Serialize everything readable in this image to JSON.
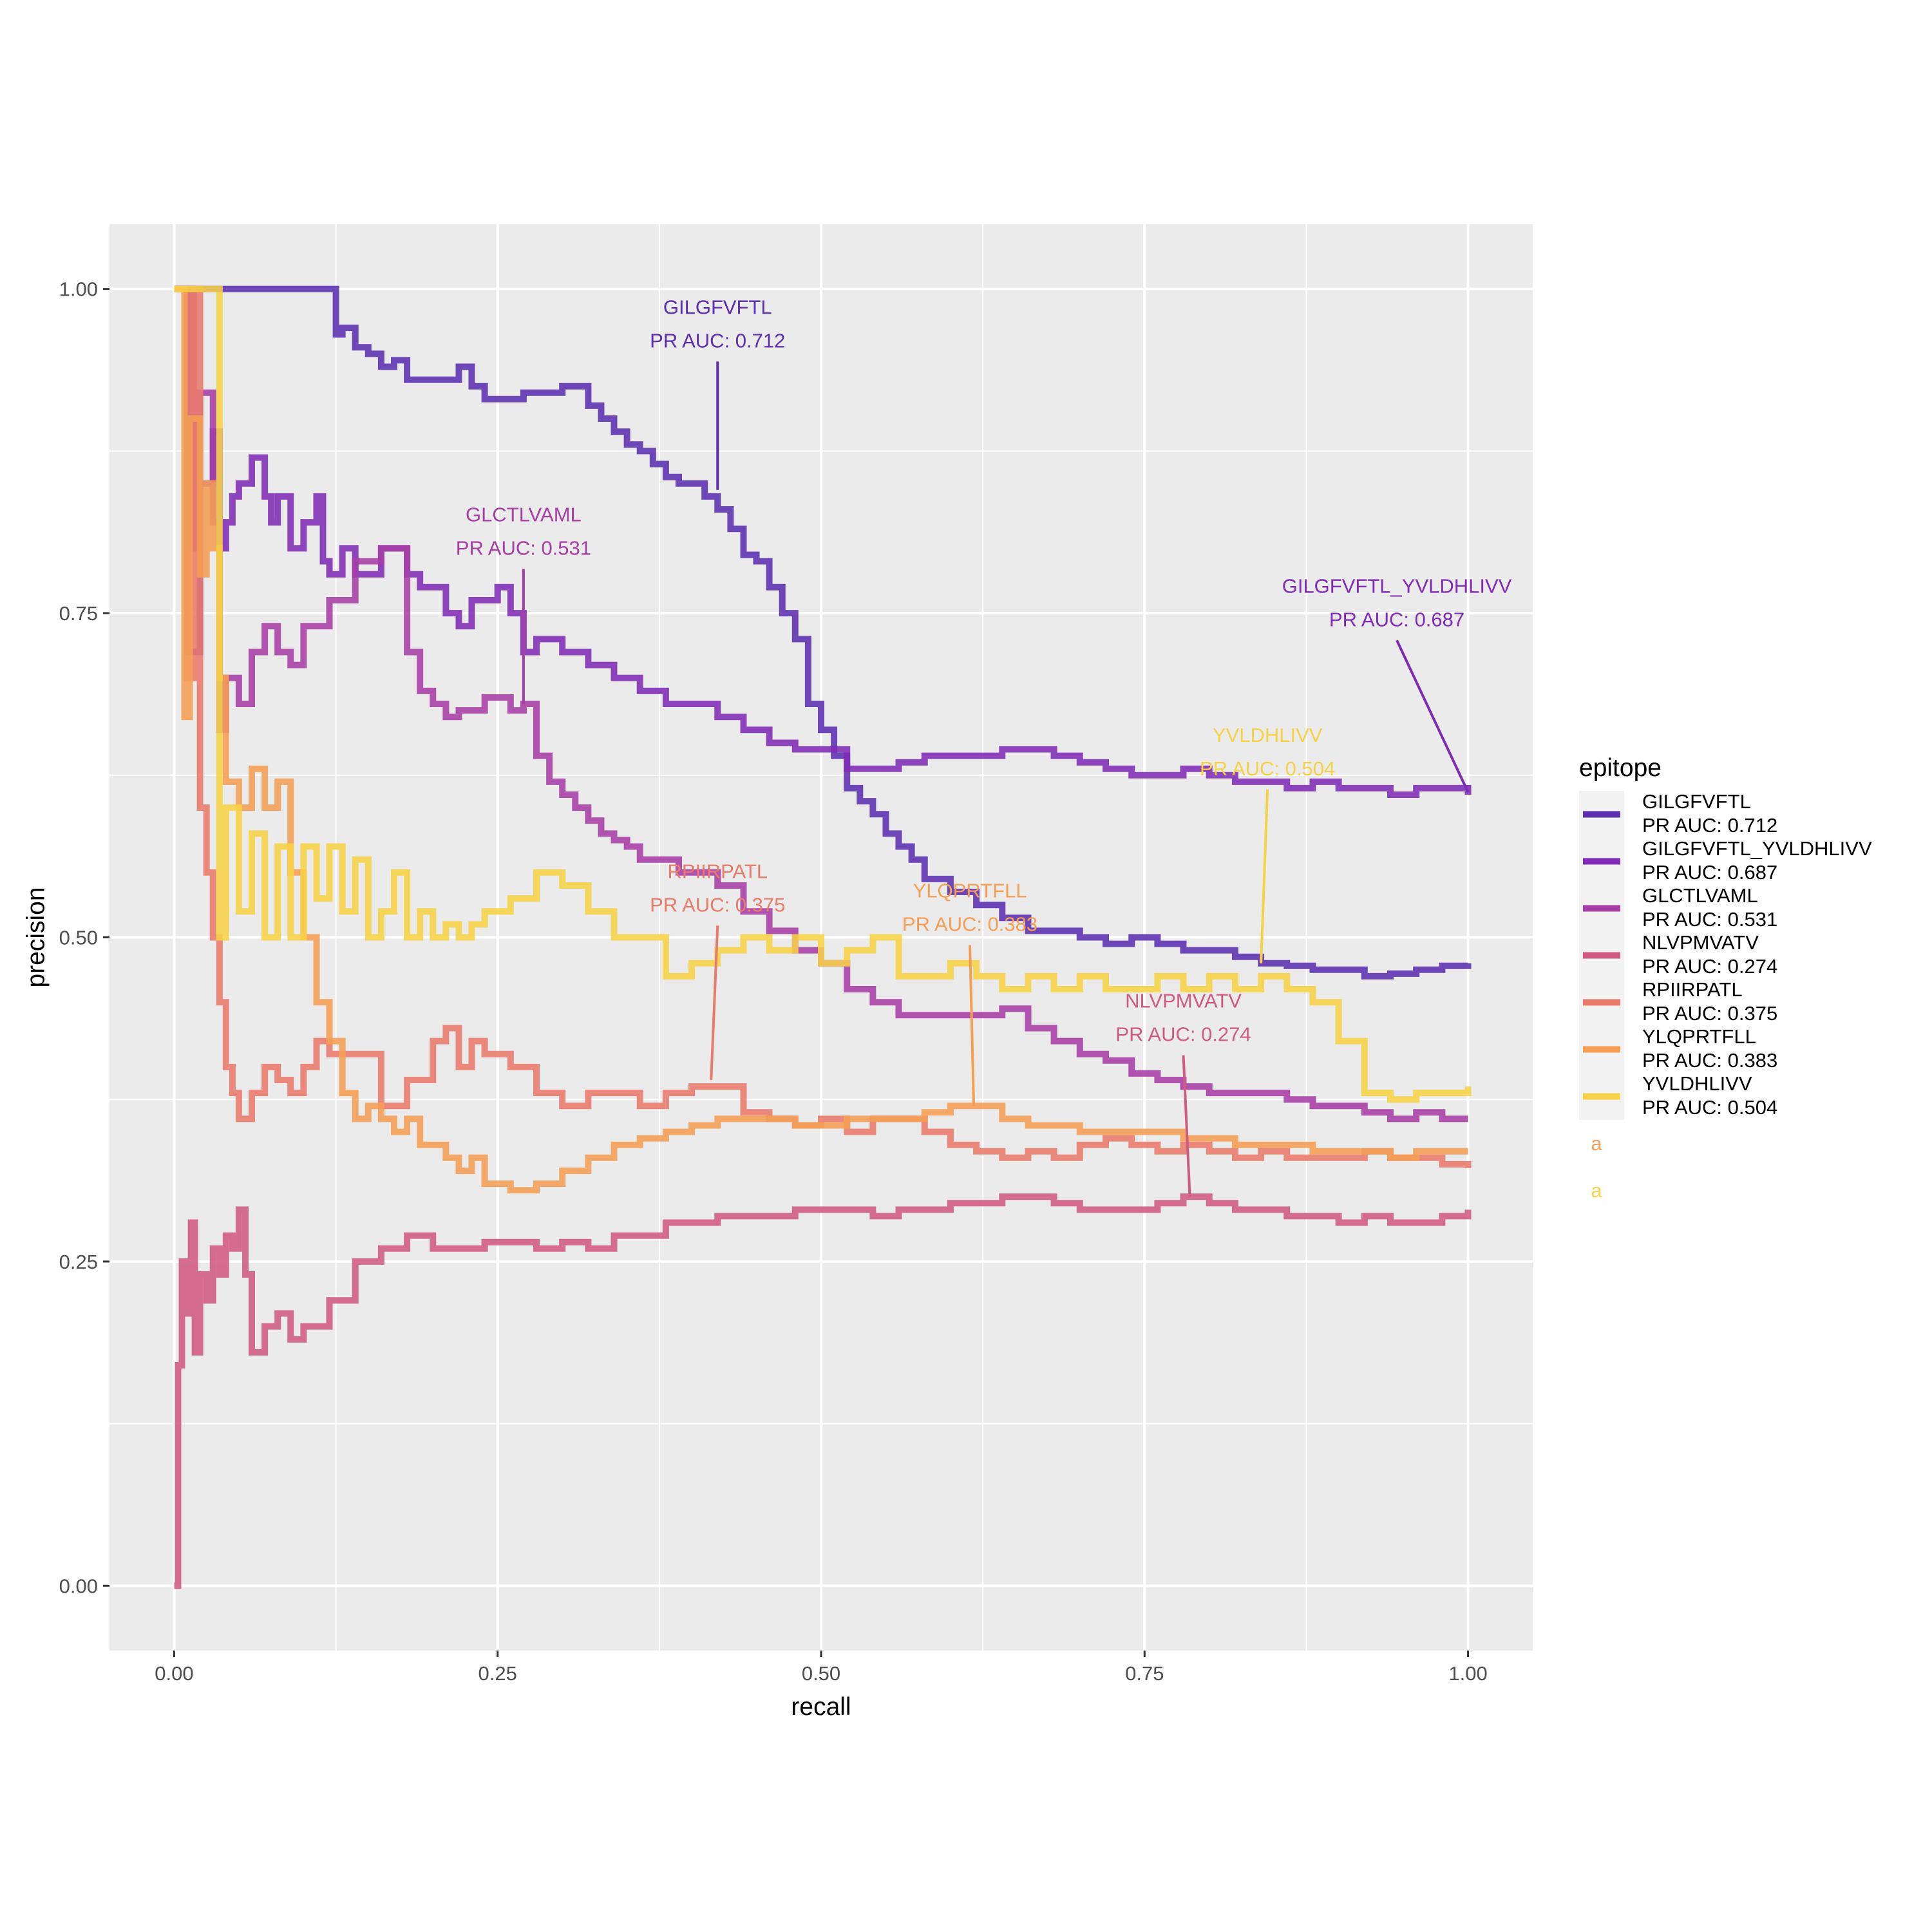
{
  "chart_data": {
    "type": "line",
    "xlabel": "recall",
    "ylabel": "precision",
    "xlim": [
      -0.05,
      1.05
    ],
    "ylim": [
      -0.05,
      1.05
    ],
    "x_ticks": [
      "0.00",
      "0.25",
      "0.50",
      "0.75",
      "1.00"
    ],
    "y_ticks": [
      "0.00",
      "0.25",
      "0.50",
      "0.75",
      "1.00"
    ],
    "grid": true,
    "legend": {
      "title": "epitope",
      "placement": "right",
      "extra_keys": [
        "a",
        "a"
      ]
    },
    "series": [
      {
        "name": "GILGFVFTL\nPR AUC: 0.712",
        "color": "#5b2fb0",
        "label_lines": [
          "GILGFVFTL",
          "PR AUC: 0.712"
        ],
        "label_anchor": [
          0.42,
          0.95
        ],
        "label_target": [
          0.42,
          0.845
        ],
        "x": [
          0.0,
          0.04,
          0.08,
          0.12,
          0.125,
          0.13,
          0.14,
          0.15,
          0.16,
          0.17,
          0.18,
          0.2,
          0.22,
          0.23,
          0.24,
          0.25,
          0.27,
          0.3,
          0.32,
          0.33,
          0.34,
          0.35,
          0.36,
          0.37,
          0.38,
          0.39,
          0.4,
          0.41,
          0.42,
          0.43,
          0.44,
          0.45,
          0.46,
          0.47,
          0.48,
          0.49,
          0.5,
          0.51,
          0.52,
          0.53,
          0.54,
          0.55,
          0.56,
          0.57,
          0.58,
          0.6,
          0.62,
          0.64,
          0.66,
          0.68,
          0.7,
          0.72,
          0.74,
          0.76,
          0.78,
          0.8,
          0.82,
          0.84,
          0.86,
          0.88,
          0.9,
          0.92,
          0.94,
          0.96,
          0.98,
          1.0
        ],
        "y": [
          1.0,
          1.0,
          1.0,
          1.0,
          0.965,
          0.97,
          0.955,
          0.95,
          0.94,
          0.945,
          0.93,
          0.93,
          0.94,
          0.925,
          0.915,
          0.915,
          0.92,
          0.925,
          0.91,
          0.9,
          0.89,
          0.88,
          0.875,
          0.865,
          0.855,
          0.85,
          0.85,
          0.84,
          0.83,
          0.815,
          0.795,
          0.79,
          0.77,
          0.75,
          0.73,
          0.68,
          0.66,
          0.64,
          0.615,
          0.605,
          0.595,
          0.58,
          0.57,
          0.56,
          0.545,
          0.535,
          0.525,
          0.515,
          0.505,
          0.505,
          0.5,
          0.495,
          0.5,
          0.495,
          0.49,
          0.49,
          0.485,
          0.48,
          0.478,
          0.475,
          0.475,
          0.47,
          0.472,
          0.475,
          0.478,
          0.48
        ]
      },
      {
        "name": "GILGFVFTL_YVLDHLIVV\nPR AUC: 0.687",
        "color": "#7f2bb5",
        "label_lines": [
          "GILGFVFTL_YVLDHLIVV",
          "PR AUC: 0.687"
        ],
        "label_anchor": [
          0.945,
          0.735
        ],
        "label_target": [
          1.0,
          0.612
        ],
        "x": [
          0.0,
          0.01,
          0.02,
          0.03,
          0.035,
          0.04,
          0.045,
          0.05,
          0.06,
          0.07,
          0.075,
          0.08,
          0.09,
          0.1,
          0.11,
          0.115,
          0.12,
          0.13,
          0.14,
          0.15,
          0.16,
          0.17,
          0.18,
          0.19,
          0.2,
          0.21,
          0.22,
          0.23,
          0.24,
          0.25,
          0.26,
          0.27,
          0.28,
          0.3,
          0.32,
          0.34,
          0.36,
          0.38,
          0.4,
          0.42,
          0.44,
          0.46,
          0.48,
          0.5,
          0.52,
          0.54,
          0.56,
          0.58,
          0.6,
          0.62,
          0.64,
          0.66,
          0.68,
          0.7,
          0.72,
          0.74,
          0.76,
          0.78,
          0.8,
          0.82,
          0.84,
          0.86,
          0.88,
          0.9,
          0.92,
          0.94,
          0.96,
          0.98,
          1.0
        ],
        "y": [
          1.0,
          0.72,
          0.85,
          0.89,
          0.8,
          0.82,
          0.84,
          0.85,
          0.87,
          0.84,
          0.82,
          0.84,
          0.8,
          0.82,
          0.84,
          0.79,
          0.78,
          0.8,
          0.78,
          0.78,
          0.8,
          0.8,
          0.78,
          0.77,
          0.77,
          0.75,
          0.74,
          0.76,
          0.76,
          0.77,
          0.75,
          0.72,
          0.73,
          0.72,
          0.71,
          0.7,
          0.69,
          0.68,
          0.68,
          0.67,
          0.66,
          0.65,
          0.645,
          0.645,
          0.63,
          0.63,
          0.635,
          0.64,
          0.64,
          0.64,
          0.645,
          0.645,
          0.64,
          0.635,
          0.63,
          0.625,
          0.625,
          0.63,
          0.625,
          0.62,
          0.62,
          0.615,
          0.62,
          0.615,
          0.615,
          0.61,
          0.615,
          0.615,
          0.61
        ]
      },
      {
        "name": "GLCTLVAML\nPR AUC: 0.531",
        "color": "#a73ea6",
        "label_lines": [
          "GLCTLVAML",
          "PR AUC: 0.531"
        ],
        "label_anchor": [
          0.27,
          0.79
        ],
        "label_target": [
          0.27,
          0.68
        ],
        "x": [
          0.0,
          0.015,
          0.02,
          0.03,
          0.035,
          0.04,
          0.05,
          0.06,
          0.07,
          0.08,
          0.09,
          0.1,
          0.12,
          0.14,
          0.16,
          0.175,
          0.18,
          0.19,
          0.2,
          0.21,
          0.22,
          0.24,
          0.26,
          0.27,
          0.28,
          0.29,
          0.3,
          0.31,
          0.32,
          0.33,
          0.34,
          0.35,
          0.36,
          0.37,
          0.38,
          0.39,
          0.4,
          0.42,
          0.44,
          0.46,
          0.48,
          0.5,
          0.52,
          0.54,
          0.56,
          0.58,
          0.6,
          0.62,
          0.64,
          0.66,
          0.68,
          0.7,
          0.72,
          0.74,
          0.76,
          0.78,
          0.8,
          0.82,
          0.84,
          0.86,
          0.88,
          0.9,
          0.92,
          0.94,
          0.96,
          0.98,
          1.0
        ],
        "y": [
          1.0,
          0.8,
          0.92,
          0.82,
          0.66,
          0.7,
          0.68,
          0.72,
          0.74,
          0.72,
          0.71,
          0.74,
          0.76,
          0.79,
          0.8,
          0.8,
          0.72,
          0.69,
          0.68,
          0.67,
          0.675,
          0.685,
          0.675,
          0.68,
          0.64,
          0.62,
          0.61,
          0.6,
          0.59,
          0.58,
          0.575,
          0.57,
          0.56,
          0.56,
          0.56,
          0.55,
          0.55,
          0.54,
          0.52,
          0.505,
          0.49,
          0.48,
          0.46,
          0.45,
          0.44,
          0.44,
          0.44,
          0.44,
          0.445,
          0.43,
          0.42,
          0.41,
          0.405,
          0.395,
          0.39,
          0.385,
          0.38,
          0.38,
          0.38,
          0.375,
          0.37,
          0.37,
          0.365,
          0.36,
          0.365,
          0.36,
          0.36
        ]
      },
      {
        "name": "NLVPMVATV\nPR AUC: 0.274",
        "color": "#cf5a82",
        "label_lines": [
          "NLVPMVATV",
          "PR AUC: 0.274"
        ],
        "label_anchor": [
          0.78,
          0.415
        ],
        "label_target": [
          0.785,
          0.3
        ],
        "x": [
          0.0,
          0.003,
          0.006,
          0.01,
          0.013,
          0.016,
          0.02,
          0.025,
          0.03,
          0.035,
          0.04,
          0.045,
          0.05,
          0.055,
          0.06,
          0.07,
          0.08,
          0.09,
          0.1,
          0.12,
          0.14,
          0.16,
          0.18,
          0.2,
          0.22,
          0.24,
          0.26,
          0.28,
          0.3,
          0.32,
          0.34,
          0.36,
          0.38,
          0.4,
          0.42,
          0.44,
          0.46,
          0.48,
          0.5,
          0.52,
          0.54,
          0.56,
          0.58,
          0.6,
          0.62,
          0.64,
          0.66,
          0.68,
          0.7,
          0.72,
          0.74,
          0.76,
          0.78,
          0.8,
          0.82,
          0.84,
          0.86,
          0.88,
          0.9,
          0.92,
          0.94,
          0.96,
          0.98,
          1.0
        ],
        "y": [
          0.0,
          0.17,
          0.25,
          0.21,
          0.28,
          0.18,
          0.24,
          0.22,
          0.26,
          0.24,
          0.27,
          0.26,
          0.29,
          0.24,
          0.18,
          0.2,
          0.21,
          0.19,
          0.2,
          0.22,
          0.25,
          0.26,
          0.27,
          0.26,
          0.26,
          0.265,
          0.265,
          0.26,
          0.265,
          0.26,
          0.27,
          0.27,
          0.28,
          0.28,
          0.285,
          0.285,
          0.285,
          0.29,
          0.29,
          0.29,
          0.285,
          0.29,
          0.29,
          0.295,
          0.295,
          0.3,
          0.3,
          0.295,
          0.29,
          0.29,
          0.29,
          0.295,
          0.3,
          0.295,
          0.29,
          0.29,
          0.285,
          0.285,
          0.28,
          0.285,
          0.28,
          0.28,
          0.285,
          0.29
        ]
      },
      {
        "name": "RPIIRPATL\nPR AUC: 0.375",
        "color": "#e97b6b",
        "label_lines": [
          "RPIIRPATL",
          "PR AUC: 0.375"
        ],
        "label_anchor": [
          0.42,
          0.515
        ],
        "label_target": [
          0.415,
          0.39
        ],
        "x": [
          0.0,
          0.01,
          0.015,
          0.02,
          0.025,
          0.03,
          0.035,
          0.04,
          0.045,
          0.05,
          0.06,
          0.07,
          0.08,
          0.09,
          0.1,
          0.11,
          0.12,
          0.14,
          0.16,
          0.18,
          0.2,
          0.21,
          0.22,
          0.23,
          0.24,
          0.26,
          0.28,
          0.3,
          0.32,
          0.34,
          0.36,
          0.38,
          0.4,
          0.42,
          0.44,
          0.46,
          0.48,
          0.5,
          0.52,
          0.54,
          0.56,
          0.58,
          0.6,
          0.62,
          0.64,
          0.66,
          0.68,
          0.7,
          0.72,
          0.74,
          0.76,
          0.78,
          0.8,
          0.82,
          0.84,
          0.86,
          0.88,
          0.9,
          0.92,
          0.94,
          0.96,
          0.98,
          1.0
        ],
        "y": [
          1.0,
          0.7,
          1.0,
          0.6,
          0.55,
          0.5,
          0.45,
          0.4,
          0.38,
          0.36,
          0.38,
          0.4,
          0.39,
          0.38,
          0.4,
          0.42,
          0.41,
          0.41,
          0.37,
          0.39,
          0.42,
          0.43,
          0.4,
          0.42,
          0.41,
          0.4,
          0.38,
          0.37,
          0.38,
          0.38,
          0.37,
          0.38,
          0.385,
          0.385,
          0.365,
          0.36,
          0.355,
          0.36,
          0.35,
          0.36,
          0.36,
          0.35,
          0.34,
          0.335,
          0.33,
          0.335,
          0.33,
          0.34,
          0.345,
          0.34,
          0.335,
          0.34,
          0.335,
          0.33,
          0.335,
          0.33,
          0.33,
          0.33,
          0.335,
          0.33,
          0.33,
          0.325,
          0.322
        ]
      },
      {
        "name": "YLQPRTFLL\nPR AUC: 0.383",
        "color": "#f59e54",
        "label_lines": [
          "YLQPRTFLL",
          "PR AUC: 0.383"
        ],
        "label_anchor": [
          0.615,
          0.5
        ],
        "label_target": [
          0.618,
          0.37
        ],
        "x": [
          0.0,
          0.008,
          0.012,
          0.02,
          0.025,
          0.03,
          0.035,
          0.04,
          0.05,
          0.06,
          0.07,
          0.08,
          0.09,
          0.1,
          0.11,
          0.12,
          0.13,
          0.14,
          0.15,
          0.16,
          0.17,
          0.18,
          0.19,
          0.2,
          0.21,
          0.22,
          0.23,
          0.24,
          0.25,
          0.26,
          0.28,
          0.3,
          0.32,
          0.34,
          0.36,
          0.38,
          0.4,
          0.42,
          0.44,
          0.46,
          0.48,
          0.5,
          0.52,
          0.54,
          0.56,
          0.58,
          0.6,
          0.62,
          0.64,
          0.66,
          0.68,
          0.7,
          0.72,
          0.74,
          0.76,
          0.78,
          0.8,
          0.82,
          0.84,
          0.86,
          0.88,
          0.9,
          0.92,
          0.94,
          0.96,
          0.98,
          1.0
        ],
        "y": [
          1.0,
          0.67,
          0.9,
          0.78,
          0.85,
          0.8,
          0.7,
          0.62,
          0.6,
          0.63,
          0.6,
          0.62,
          0.55,
          0.5,
          0.45,
          0.42,
          0.38,
          0.36,
          0.37,
          0.36,
          0.35,
          0.36,
          0.34,
          0.34,
          0.33,
          0.32,
          0.33,
          0.31,
          0.31,
          0.305,
          0.31,
          0.32,
          0.33,
          0.34,
          0.345,
          0.35,
          0.355,
          0.36,
          0.36,
          0.36,
          0.355,
          0.355,
          0.36,
          0.36,
          0.36,
          0.365,
          0.37,
          0.37,
          0.36,
          0.355,
          0.355,
          0.35,
          0.35,
          0.35,
          0.35,
          0.345,
          0.345,
          0.34,
          0.34,
          0.34,
          0.335,
          0.335,
          0.335,
          0.33,
          0.335,
          0.335,
          0.335
        ]
      },
      {
        "name": "YVLDHLIVV\nPR AUC: 0.504",
        "color": "#f7d247",
        "label_lines": [
          "YVLDHLIVV",
          "PR AUC: 0.504"
        ],
        "label_anchor": [
          0.845,
          0.62
        ],
        "label_target": [
          0.84,
          0.48
        ],
        "x": [
          0.0,
          0.01,
          0.02,
          0.03,
          0.034,
          0.035,
          0.04,
          0.05,
          0.06,
          0.07,
          0.08,
          0.09,
          0.1,
          0.11,
          0.12,
          0.13,
          0.14,
          0.15,
          0.16,
          0.17,
          0.18,
          0.19,
          0.2,
          0.21,
          0.22,
          0.23,
          0.24,
          0.26,
          0.28,
          0.3,
          0.32,
          0.34,
          0.36,
          0.38,
          0.4,
          0.42,
          0.44,
          0.46,
          0.48,
          0.5,
          0.52,
          0.54,
          0.56,
          0.58,
          0.6,
          0.62,
          0.64,
          0.66,
          0.68,
          0.7,
          0.72,
          0.74,
          0.76,
          0.78,
          0.8,
          0.82,
          0.84,
          0.86,
          0.88,
          0.9,
          0.92,
          0.94,
          0.96,
          0.98,
          1.0
        ],
        "y": [
          1.0,
          1.0,
          1.0,
          1.0,
          1.0,
          0.5,
          0.6,
          0.52,
          0.58,
          0.5,
          0.57,
          0.5,
          0.57,
          0.53,
          0.57,
          0.52,
          0.56,
          0.5,
          0.52,
          0.55,
          0.5,
          0.52,
          0.5,
          0.51,
          0.5,
          0.51,
          0.52,
          0.53,
          0.55,
          0.54,
          0.52,
          0.5,
          0.5,
          0.47,
          0.48,
          0.49,
          0.5,
          0.49,
          0.5,
          0.48,
          0.49,
          0.5,
          0.47,
          0.47,
          0.48,
          0.47,
          0.46,
          0.47,
          0.46,
          0.47,
          0.46,
          0.46,
          0.47,
          0.46,
          0.47,
          0.46,
          0.47,
          0.46,
          0.45,
          0.42,
          0.38,
          0.375,
          0.38,
          0.38,
          0.385
        ]
      }
    ]
  }
}
